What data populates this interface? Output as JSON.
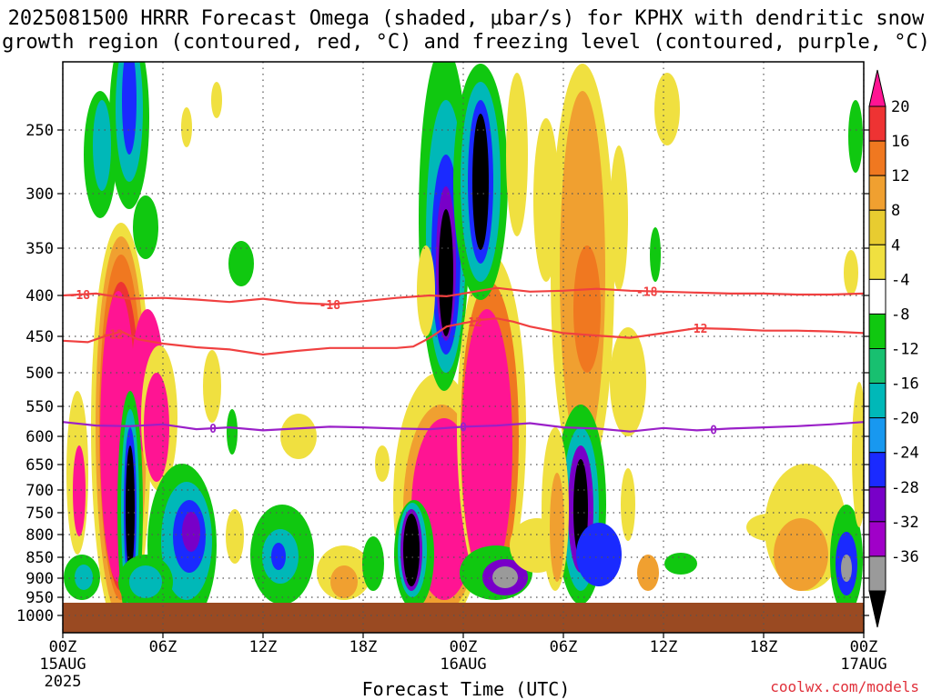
{
  "title_line1": "2025081500 HRRR Forecast Omega (shaded, μbar/s) for KPHX with dendritic snow",
  "title_line2": "growth region (contoured, red, °C) and freezing level (contoured, purple, °C)",
  "xlabel": "Forecast Time (UTC)",
  "credit": "coolwx.com/models",
  "chart_data": {
    "type": "heatmap",
    "y_axis": {
      "quantity": "pressure (hPa)",
      "inverted": true,
      "range": [
        1050,
        200
      ],
      "ticks": [
        "250",
        "300",
        "350",
        "400",
        "450",
        "500",
        "550",
        "600",
        "650",
        "700",
        "750",
        "800",
        "850",
        "900",
        "950",
        "1000"
      ]
    },
    "x_axis": {
      "range_hours": [
        0,
        48
      ],
      "ticks": [
        {
          "hour": 0,
          "label": "00Z",
          "sub1": "15AUG",
          "sub2": "2025"
        },
        {
          "hour": 6,
          "label": "06Z",
          "sub1": "",
          "sub2": ""
        },
        {
          "hour": 12,
          "label": "12Z",
          "sub1": "",
          "sub2": ""
        },
        {
          "hour": 18,
          "label": "18Z",
          "sub1": "",
          "sub2": ""
        },
        {
          "hour": 24,
          "label": "00Z",
          "sub1": "16AUG",
          "sub2": ""
        },
        {
          "hour": 30,
          "label": "06Z",
          "sub1": "",
          "sub2": ""
        },
        {
          "hour": 36,
          "label": "12Z",
          "sub1": "",
          "sub2": ""
        },
        {
          "hour": 42,
          "label": "18Z",
          "sub1": "",
          "sub2": ""
        },
        {
          "hour": 48,
          "label": "00Z",
          "sub1": "17AUG",
          "sub2": ""
        }
      ]
    },
    "grid": true,
    "colorbar": {
      "labels": [
        "20",
        "16",
        "12",
        "8",
        "4",
        "-4",
        "-8",
        "-12",
        "-16",
        "-20",
        "-24",
        "-28",
        "-32",
        "-36"
      ],
      "colors": [
        "#ff1493",
        "#ee3333",
        "#f07820",
        "#f0a030",
        "#e8cc30",
        "#f0e040",
        "#ffffff",
        "#10c810",
        "#18c070",
        "#00b8b8",
        "#1898f0",
        "#1a2aff",
        "#7800c8",
        "#a000c8",
        "#9a9a9a",
        "#000000"
      ]
    },
    "surface_fill": {
      "from_hpa": 965,
      "color": "#9a4a22"
    },
    "contours": [
      {
        "label": "-18",
        "color": "#f04040",
        "points": [
          [
            0,
            400
          ],
          [
            2,
            398
          ],
          [
            4,
            404
          ],
          [
            6,
            403
          ],
          [
            8,
            405
          ],
          [
            10,
            408
          ],
          [
            12,
            404
          ],
          [
            14,
            409
          ],
          [
            16,
            411
          ],
          [
            18,
            407
          ],
          [
            20,
            403
          ],
          [
            22,
            400
          ],
          [
            23,
            401
          ],
          [
            24,
            398
          ],
          [
            25,
            395
          ],
          [
            26,
            392
          ],
          [
            27,
            394
          ],
          [
            28,
            396
          ],
          [
            30,
            395
          ],
          [
            32,
            393
          ],
          [
            34,
            395
          ],
          [
            36,
            396
          ],
          [
            38,
            397
          ],
          [
            40,
            398
          ],
          [
            42,
            398
          ],
          [
            44,
            399
          ],
          [
            46,
            399
          ],
          [
            48,
            398
          ]
        ],
        "label_hours": [
          1,
          16,
          35
        ]
      },
      {
        "label": "-12",
        "color": "#f04040",
        "points": [
          [
            0,
            456
          ],
          [
            1.5,
            458
          ],
          [
            2.5,
            450
          ],
          [
            3.5,
            444
          ],
          [
            4.5,
            454
          ],
          [
            6,
            460
          ],
          [
            8,
            465
          ],
          [
            10,
            468
          ],
          [
            12,
            475
          ],
          [
            14,
            470
          ],
          [
            16,
            466
          ],
          [
            18,
            466
          ],
          [
            20,
            466
          ],
          [
            21,
            464
          ],
          [
            22,
            452
          ],
          [
            23,
            438
          ],
          [
            24,
            434
          ],
          [
            25,
            430
          ],
          [
            26,
            428
          ],
          [
            27,
            432
          ],
          [
            28,
            438
          ],
          [
            30,
            446
          ],
          [
            32,
            449
          ],
          [
            34,
            452
          ],
          [
            36,
            446
          ],
          [
            38,
            440
          ],
          [
            40,
            441
          ],
          [
            42,
            443
          ],
          [
            44,
            443
          ],
          [
            46,
            444
          ],
          [
            48,
            446
          ]
        ],
        "label_hours": [
          3,
          24.5,
          38
        ]
      },
      {
        "label": "0",
        "color": "#9a20c8",
        "points": [
          [
            0,
            576
          ],
          [
            2,
            582
          ],
          [
            4,
            583
          ],
          [
            6,
            580
          ],
          [
            8,
            588
          ],
          [
            10,
            585
          ],
          [
            12,
            590
          ],
          [
            14,
            587
          ],
          [
            16,
            584
          ],
          [
            18,
            585
          ],
          [
            20,
            587
          ],
          [
            22,
            588
          ],
          [
            24,
            584
          ],
          [
            26,
            582
          ],
          [
            28,
            578
          ],
          [
            30,
            585
          ],
          [
            32,
            587
          ],
          [
            34,
            592
          ],
          [
            36,
            586
          ],
          [
            38,
            590
          ],
          [
            40,
            587
          ],
          [
            42,
            585
          ],
          [
            44,
            583
          ],
          [
            46,
            580
          ],
          [
            48,
            576
          ]
        ],
        "label_hours": [
          9,
          24,
          39
        ]
      }
    ]
  }
}
